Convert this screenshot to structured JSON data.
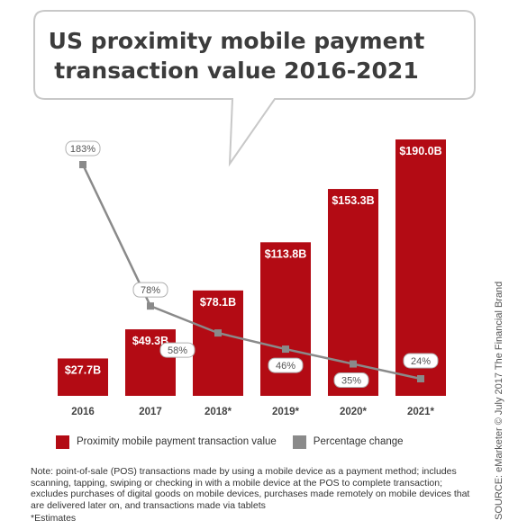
{
  "title_lines": [
    "US proximity mobile payment",
    "transaction value 2016-2021"
  ],
  "colors": {
    "bar": "#b30b14",
    "line": "#8a8a8a",
    "bubble_border": "#c8c8c8",
    "label_border": "#b0b0b0"
  },
  "chart_data": {
    "type": "bar",
    "title": "US proximity mobile payment transaction value 2016-2021",
    "categories": [
      "2016",
      "2017",
      "2018*",
      "2019*",
      "2020*",
      "2021*"
    ],
    "series": [
      {
        "name": "Proximity mobile payment transaction value",
        "type": "bar",
        "values": [
          27.7,
          49.3,
          78.1,
          113.8,
          153.3,
          190.0
        ],
        "labels": [
          "$27.7B",
          "$49.3B",
          "$78.1B",
          "$113.8B",
          "$153.3B",
          "$190.0B"
        ]
      },
      {
        "name": "Percentage change",
        "type": "line",
        "values": [
          183,
          78,
          58,
          46,
          35,
          24
        ],
        "labels": [
          "183%",
          "78%",
          "58%",
          "46%",
          "35%",
          "24%"
        ]
      }
    ]
  },
  "legend": {
    "bar": "Proximity mobile payment transaction value",
    "line": "Percentage change"
  },
  "note": "Note: point-of-sale (POS) transactions made by using a mobile device as a payment method; includes scanning, tapping, swiping or checking in with a mobile device at the POS to complete transaction; excludes purchases of digital goods on mobile devices, purchases made remotely on mobile devices that are delivered later on, and transactions made via tablets",
  "estimates_note": "*Estimates",
  "source": "SOURCE: eMarketer © July 2017 The Financial Brand"
}
